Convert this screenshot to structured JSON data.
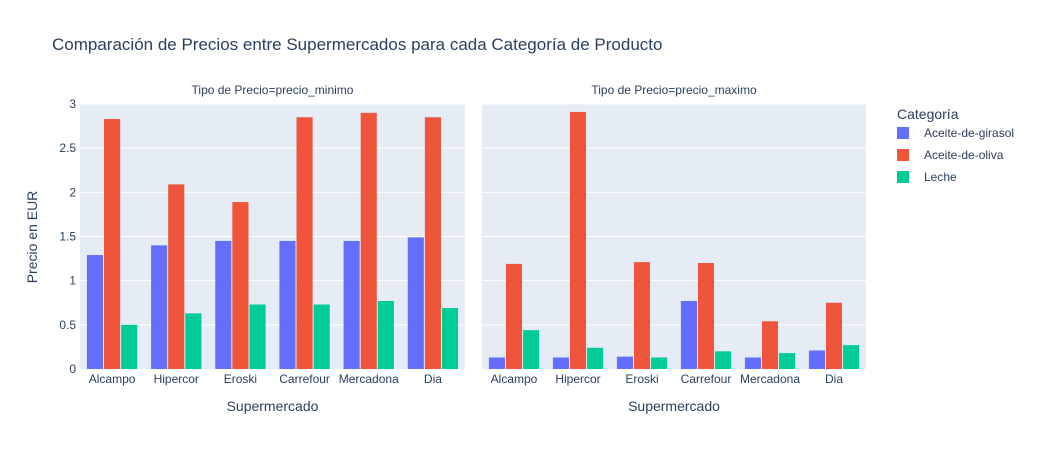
{
  "chart_data": {
    "type": "bar",
    "title": "Comparación de Precios entre Supermercados para cada Categoría de Producto",
    "ylabel": "Precio en EUR",
    "xlabel": "Supermercado",
    "legend_title": "Categoría",
    "legend_placement": "right",
    "grid": true,
    "categories": [
      "Alcampo",
      "Hipercor",
      "Eroski",
      "Carrefour",
      "Mercadona",
      "Dia"
    ],
    "ylim": [
      0,
      3
    ],
    "yticks": [
      "0",
      "0.5",
      "1",
      "1.5",
      "2",
      "2.5",
      "3"
    ],
    "colors": {
      "Aceite-de-girasol": "#636efa",
      "Aceite-de-oliva": "#ef553b",
      "Leche": "#00cc96"
    },
    "panels": [
      {
        "subtitle": "Tipo de Precio=precio_minimo",
        "series": [
          {
            "name": "Aceite-de-girasol",
            "values": [
              1.29,
              1.4,
              1.45,
              1.45,
              1.45,
              1.49
            ]
          },
          {
            "name": "Aceite-de-oliva",
            "values": [
              2.83,
              2.09,
              1.89,
              2.85,
              2.9,
              2.85
            ]
          },
          {
            "name": "Leche",
            "values": [
              0.5,
              0.63,
              0.73,
              0.73,
              0.77,
              0.69
            ]
          }
        ]
      },
      {
        "subtitle": "Tipo de Precio=precio_maximo",
        "series": [
          {
            "name": "Aceite-de-girasol",
            "values": [
              0.13,
              0.13,
              0.14,
              0.77,
              0.13,
              0.21
            ]
          },
          {
            "name": "Aceite-de-oliva",
            "values": [
              1.19,
              2.91,
              1.21,
              1.2,
              0.54,
              0.75
            ]
          },
          {
            "name": "Leche",
            "values": [
              0.44,
              0.24,
              0.13,
              0.2,
              0.18,
              0.27
            ]
          }
        ]
      }
    ]
  }
}
